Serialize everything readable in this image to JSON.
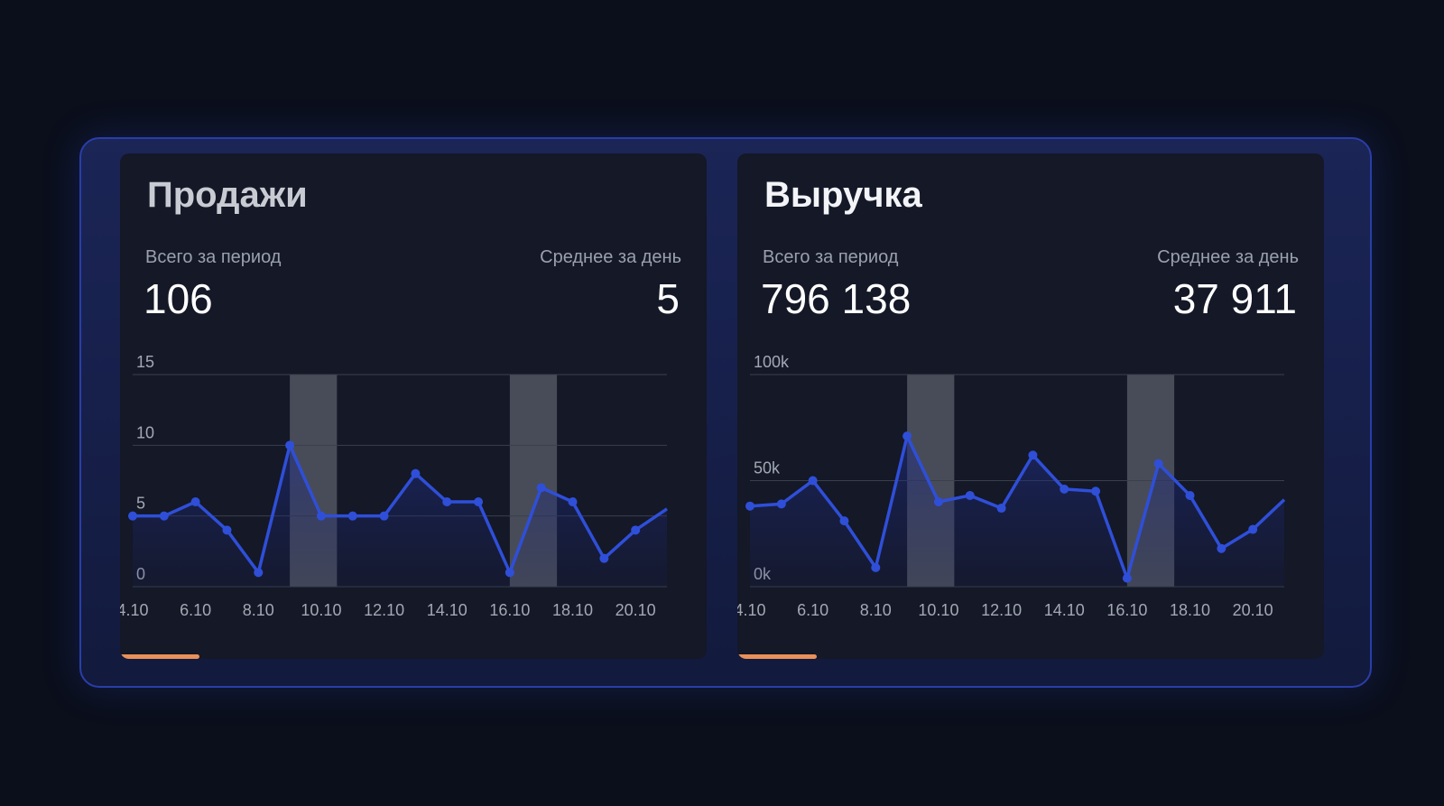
{
  "cards": [
    {
      "title": "Продажи",
      "total_label": "Всего за период",
      "total_value": "106",
      "avg_label": "Среднее за день",
      "avg_value": "5"
    },
    {
      "title": "Выручка",
      "total_label": "Всего за период",
      "total_value": "796 138",
      "avg_label": "Среднее за день",
      "avg_value": "37 911"
    }
  ],
  "colors": {
    "line": "#2f4fd8",
    "accent": "#e8915a",
    "highlight": "#5a5e6a"
  },
  "chart_data": [
    {
      "type": "line",
      "x_tick_labels": [
        "4.10",
        "6.10",
        "8.10",
        "10.10",
        "12.10",
        "14.10",
        "16.10",
        "18.10",
        "20.10"
      ],
      "x": [
        4,
        5,
        6,
        7,
        8,
        9,
        10,
        11,
        12,
        13,
        14,
        15,
        16,
        17,
        18,
        19,
        20,
        21
      ],
      "values": [
        5,
        5,
        6,
        4,
        1,
        10,
        5,
        5,
        5,
        8,
        6,
        6,
        1,
        7,
        6,
        2,
        4,
        5.5
      ],
      "ylim": [
        0,
        15
      ],
      "y_ticks": [
        0,
        5,
        10,
        15
      ],
      "y_tick_labels": [
        "0",
        "5",
        "10",
        "15"
      ],
      "highlight_ranges": [
        [
          9,
          10.5
        ],
        [
          16,
          17.5
        ]
      ],
      "grid": true
    },
    {
      "type": "line",
      "x_tick_labels": [
        "4.10",
        "6.10",
        "8.10",
        "10.10",
        "12.10",
        "14.10",
        "16.10",
        "18.10",
        "20.10"
      ],
      "x": [
        4,
        5,
        6,
        7,
        8,
        9,
        10,
        11,
        12,
        13,
        14,
        15,
        16,
        17,
        18,
        19,
        20,
        21
      ],
      "values": [
        38000,
        39000,
        50000,
        31000,
        9000,
        71000,
        40000,
        43000,
        37000,
        62000,
        46000,
        45000,
        4000,
        58000,
        43000,
        18000,
        27000,
        41000
      ],
      "ylim": [
        0,
        100000
      ],
      "y_ticks": [
        0,
        50000,
        100000
      ],
      "y_tick_labels": [
        "0k",
        "50k",
        "100k"
      ],
      "highlight_ranges": [
        [
          9,
          10.5
        ],
        [
          16,
          17.5
        ]
      ],
      "grid": true
    }
  ]
}
